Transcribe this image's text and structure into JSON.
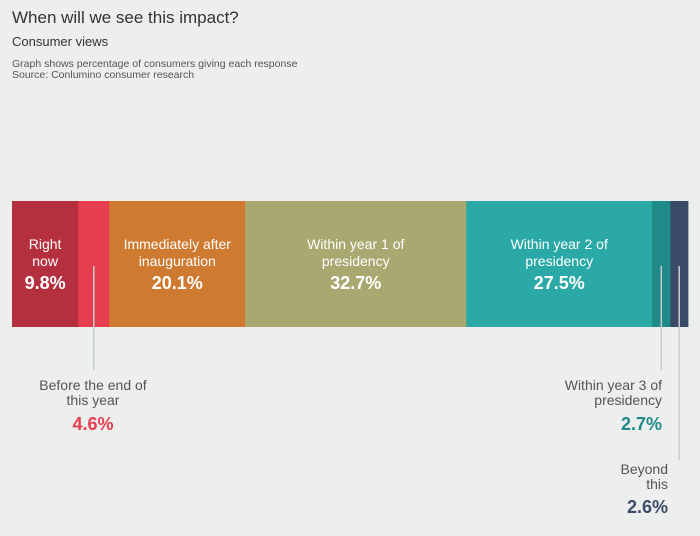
{
  "chart_data": {
    "type": "bar",
    "orientation": "horizontal-stacked-100",
    "title": "When will we see this impact?",
    "subtitle": "Consumer views",
    "notes": [
      "Graph shows percentage of consumers giving each response",
      "Source: Conlumino consumer research"
    ],
    "categories": [
      "Right now",
      "Before the end of this year",
      "Immediately after inauguration",
      "Within year 1 of presidency",
      "Within year 2 of presidency",
      "Within year 3 of presidency",
      "Beyond this"
    ],
    "label_lines": [
      [
        "Right",
        "now"
      ],
      [
        "Before the end of",
        "this year"
      ],
      [
        "Immediately after",
        "inauguration"
      ],
      [
        "Within year 1 of",
        "presidency"
      ],
      [
        "Within year 2 of",
        "presidency"
      ],
      [
        "Within year 3 of",
        "presidency"
      ],
      [
        "Beyond",
        "this"
      ]
    ],
    "values": [
      9.8,
      4.6,
      20.1,
      32.7,
      27.5,
      2.7,
      2.6
    ],
    "value_labels": [
      "9.8%",
      "4.6%",
      "20.1%",
      "32.7%",
      "27.5%",
      "2.7%",
      "2.6%"
    ],
    "colors": [
      "#b5303f",
      "#e53f4f",
      "#cf7a31",
      "#a9a870",
      "#2aa9a6",
      "#1f8a88",
      "#3b4a66"
    ],
    "outside_label_colors": {
      "1": "#e53f4f",
      "5": "#1f8a88",
      "6": "#3b4a66"
    },
    "unit": "%"
  }
}
